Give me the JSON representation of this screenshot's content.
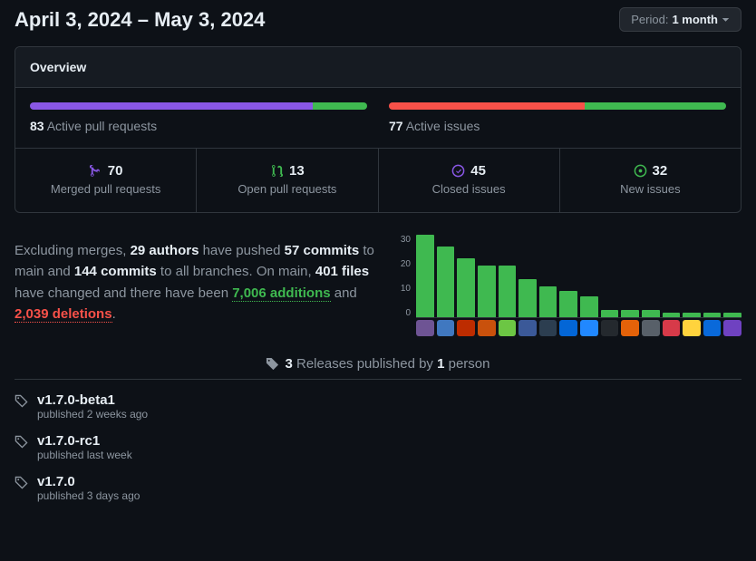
{
  "colors": {
    "purple": "#8957e5",
    "green": "#3fb950",
    "red": "#f85149",
    "muted": "#8d96a0"
  },
  "header": {
    "date_range": "April 3, 2024 – May 3, 2024",
    "period_label": "Period:",
    "period_value": "1 month"
  },
  "overview": {
    "title": "Overview",
    "pr_bar": {
      "count": "83",
      "label": "Active pull requests",
      "merged_pct": 84,
      "open_pct": 16
    },
    "issue_bar": {
      "count": "77",
      "label": "Active issues",
      "closed_pct": 58,
      "new_pct": 42
    },
    "stats": {
      "merged": {
        "count": "70",
        "label": "Merged pull requests"
      },
      "open": {
        "count": "13",
        "label": "Open pull requests"
      },
      "closed": {
        "count": "45",
        "label": "Closed issues"
      },
      "new": {
        "count": "32",
        "label": "New issues"
      }
    }
  },
  "summary": {
    "t1": "Excluding merges, ",
    "authors": "29 authors",
    "t2": " have pushed ",
    "commits_main": "57 commits",
    "t3": " to main and ",
    "commits_all": "144 commits",
    "t4": " to all branches. On main, ",
    "files": "401 files",
    "t5": " have changed and there have been ",
    "additions": "7,006 additions",
    "t6": " and ",
    "deletions": "2,039 deletions",
    "t7": "."
  },
  "chart": {
    "y_ticks": [
      "30",
      "20",
      "10",
      "0"
    ],
    "bar_color": "#3fb950",
    "max": 35,
    "values": [
      35,
      30,
      25,
      22,
      22,
      16,
      13,
      11,
      9,
      3,
      3,
      3,
      2,
      2,
      2,
      2
    ],
    "avatar_colors": [
      "#6e5494",
      "#4078c0",
      "#bd2c00",
      "#c9510c",
      "#6cc644",
      "#3b5998",
      "#2c3e50",
      "#0366d6",
      "#2188ff",
      "#24292e",
      "#e36209",
      "#586069",
      "#d73a49",
      "#ffd33d",
      "#0969da",
      "#6f42c1"
    ]
  },
  "releases": {
    "header": {
      "count": "3",
      "t1": "Releases published by",
      "people": "1",
      "t2": "person"
    },
    "items": [
      {
        "name": "v1.7.0-beta1",
        "published": "published 2 weeks ago"
      },
      {
        "name": "v1.7.0-rc1",
        "published": "published last week"
      },
      {
        "name": "v1.7.0",
        "published": "published 3 days ago"
      }
    ]
  }
}
